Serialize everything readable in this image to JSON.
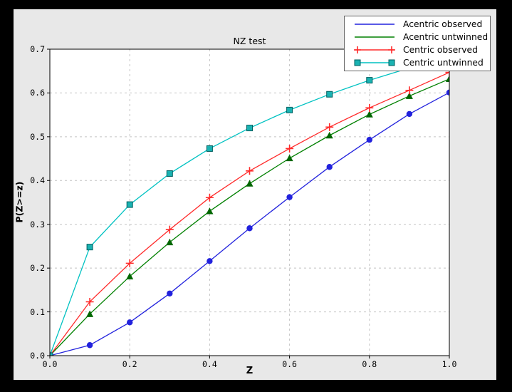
{
  "colors": {
    "page_bg": "#000000",
    "figure_bg": "#e8e8e8",
    "plot_bg": "#ffffff",
    "grid": "#c4c4c4",
    "axis": "#000000",
    "legend_bg": "#ffffff",
    "legend_border": "#666666"
  },
  "chart_data": {
    "type": "line",
    "title": "NZ test",
    "xlabel": "Z",
    "ylabel": "P(Z>=z)",
    "xlim": [
      0.0,
      1.0
    ],
    "ylim": [
      0.0,
      0.7
    ],
    "xtick_labels": [
      "0.0",
      "0.2",
      "0.4",
      "0.6",
      "0.8",
      "1.0"
    ],
    "ytick_labels": [
      "0.0",
      "0.1",
      "0.2",
      "0.3",
      "0.4",
      "0.5",
      "0.6",
      "0.7"
    ],
    "grid": "dashed",
    "legend_position": "upper-right",
    "x": [
      0.0,
      0.1,
      0.2,
      0.3,
      0.4,
      0.5,
      0.6,
      0.7,
      0.8,
      0.9,
      1.0
    ],
    "series": [
      {
        "name": "Acentric observed",
        "color": "#2222dd",
        "marker": "circle",
        "marker_fill": "#2222dd",
        "marker_edge": "#1111bb",
        "legend_markers": false,
        "values": [
          0.0,
          0.024,
          0.076,
          0.142,
          0.216,
          0.291,
          0.362,
          0.431,
          0.493,
          0.552,
          0.601
        ]
      },
      {
        "name": "Acentric untwinned",
        "color": "#008000",
        "marker": "triangle",
        "marker_fill": "#006600",
        "marker_edge": "#005500",
        "legend_markers": false,
        "values": [
          0.0,
          0.095,
          0.181,
          0.259,
          0.33,
          0.393,
          0.451,
          0.503,
          0.551,
          0.593,
          0.632
        ]
      },
      {
        "name": "Centric observed",
        "color": "#ff2a2a",
        "marker": "plus",
        "marker_fill": "#ff2a2a",
        "marker_edge": "#ff2a2a",
        "legend_markers": true,
        "values": [
          0.0,
          0.123,
          0.211,
          0.288,
          0.361,
          0.422,
          0.473,
          0.522,
          0.566,
          0.606,
          0.647
        ]
      },
      {
        "name": "Centric untwinned",
        "color": "#00c2c2",
        "marker": "square",
        "marker_fill": "#1ab2b2",
        "marker_edge": "#005e5e",
        "legend_markers": true,
        "values": [
          0.0,
          0.248,
          0.345,
          0.416,
          0.473,
          0.52,
          0.561,
          0.597,
          0.629,
          0.657,
          0.683
        ]
      }
    ]
  }
}
